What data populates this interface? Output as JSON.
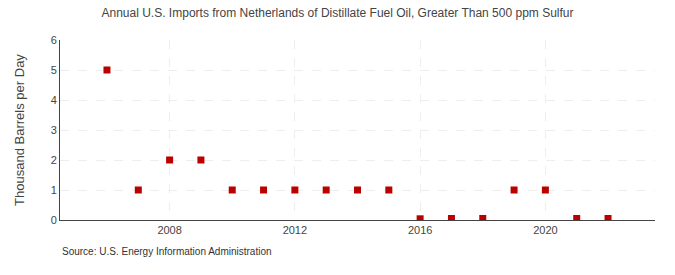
{
  "chart_data": {
    "type": "scatter",
    "title": "Annual U.S. Imports from Netherlands of Distillate Fuel Oil, Greater Than 500 ppm Sulfur",
    "y_label": "Thousand Barrels per Day",
    "annotations": [
      "Source: U.S. Energy Information Administration"
    ],
    "x": [
      2006,
      2007,
      2008,
      2009,
      2010,
      2011,
      2012,
      2013,
      2014,
      2015,
      2016,
      2017,
      2018,
      2019,
      2020,
      2021,
      2022
    ],
    "values": [
      5,
      1,
      2,
      2,
      1,
      1,
      1,
      1,
      1,
      1,
      0.04,
      0.05,
      0.05,
      1,
      1,
      0.05,
      0.05
    ],
    "color": "#bb0000",
    "marker": "square",
    "xlim": [
      2004.5,
      2023.5
    ],
    "xticks": [
      2008,
      2012,
      2016,
      2020
    ],
    "ylim": [
      0,
      6
    ],
    "yticks": [
      0,
      1,
      2,
      3,
      4,
      5,
      6
    ],
    "grid": true
  }
}
